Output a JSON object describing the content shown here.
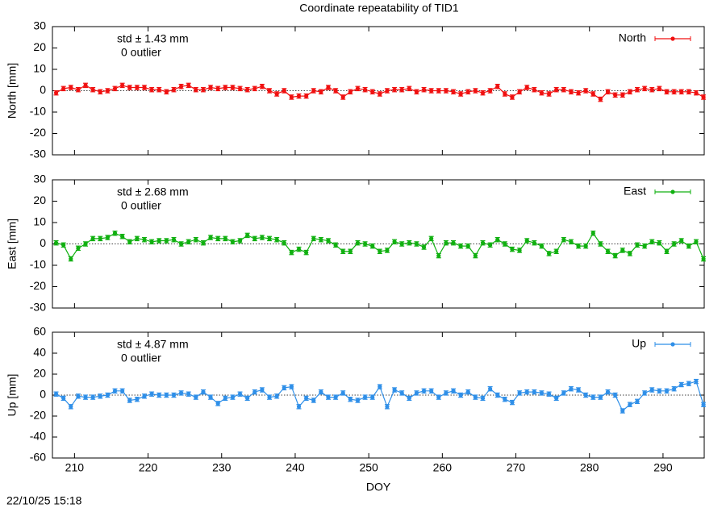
{
  "title": "Coordinate repeatability of TID1",
  "timestamp": "22/10/25 15:18",
  "chart_data": [
    {
      "type": "line",
      "ylabel": "North [mm]",
      "annotations": [
        "std ± 1.43 mm",
        "0 outlier"
      ],
      "x": [
        207.5,
        208.5,
        209.5,
        210.5,
        211.5,
        212.5,
        213.5,
        214.5,
        215.5,
        216.5,
        217.5,
        218.5,
        219.5,
        220.5,
        221.5,
        222.5,
        223.5,
        224.5,
        225.5,
        226.5,
        227.5,
        228.5,
        229.5,
        230.5,
        231.5,
        232.5,
        233.5,
        234.5,
        235.5,
        236.5,
        237.5,
        238.5,
        239.5,
        240.5,
        241.5,
        242.5,
        243.5,
        244.5,
        245.5,
        246.5,
        247.5,
        248.5,
        249.5,
        250.5,
        251.5,
        252.5,
        253.5,
        254.5,
        255.5,
        256.5,
        257.5,
        258.5,
        259.5,
        260.5,
        261.5,
        262.5,
        263.5,
        264.5,
        265.5,
        266.5,
        267.5,
        268.5,
        269.5,
        270.5,
        271.5,
        272.5,
        273.5,
        274.5,
        275.5,
        276.5,
        277.5,
        278.5,
        279.5,
        280.5,
        281.5,
        282.5,
        283.5,
        284.5,
        285.5,
        286.5,
        287.5,
        288.5,
        289.5,
        290.5,
        291.5,
        292.5,
        293.5,
        294.5,
        295.5
      ],
      "series": [
        {
          "name": "North",
          "color": "#f01010",
          "error": 1,
          "values": [
            -1,
            1,
            1.5,
            0.5,
            2.5,
            0.5,
            -0.5,
            0,
            1,
            2.5,
            1.5,
            1.5,
            1.5,
            0.5,
            0.5,
            -0.5,
            0.5,
            2,
            2.5,
            0.5,
            0.5,
            1.5,
            1,
            1.5,
            1.5,
            1,
            0.5,
            1,
            2,
            0,
            -1.5,
            0,
            -3,
            -2.5,
            -2.5,
            0,
            -0.5,
            1.5,
            0,
            -3,
            -0.5,
            1,
            0.5,
            -0.5,
            -1.5,
            0,
            0.5,
            0.5,
            1,
            -0.5,
            0.5,
            0,
            0,
            0,
            -0.5,
            -1.5,
            -0.5,
            0,
            -1,
            0,
            2,
            -1.5,
            -3,
            -0.5,
            1.5,
            0.5,
            -1,
            -1.5,
            0.5,
            0.5,
            -0.5,
            -1,
            0,
            -1.5,
            -4,
            -0.5,
            -2,
            -2,
            -0.5,
            0.5,
            1,
            0.5,
            1,
            -0.5,
            -0.5,
            -0.5,
            -0.5,
            -1,
            -3
          ]
        }
      ],
      "xlim": [
        207,
        295.6
      ],
      "xticks": [
        210,
        220,
        230,
        240,
        250,
        260,
        270,
        280,
        290
      ],
      "ylim": [
        -30,
        30
      ],
      "yticks": [
        -30,
        -20,
        -10,
        0,
        10,
        20,
        30
      ],
      "hline": 0,
      "legend": "upper right"
    },
    {
      "type": "line",
      "ylabel": "East [mm]",
      "annotations": [
        "std ± 2.68 mm",
        "0 outlier"
      ],
      "x": [
        207.5,
        208.5,
        209.5,
        210.5,
        211.5,
        212.5,
        213.5,
        214.5,
        215.5,
        216.5,
        217.5,
        218.5,
        219.5,
        220.5,
        221.5,
        222.5,
        223.5,
        224.5,
        225.5,
        226.5,
        227.5,
        228.5,
        229.5,
        230.5,
        231.5,
        232.5,
        233.5,
        234.5,
        235.5,
        236.5,
        237.5,
        238.5,
        239.5,
        240.5,
        241.5,
        242.5,
        243.5,
        244.5,
        245.5,
        246.5,
        247.5,
        248.5,
        249.5,
        250.5,
        251.5,
        252.5,
        253.5,
        254.5,
        255.5,
        256.5,
        257.5,
        258.5,
        259.5,
        260.5,
        261.5,
        262.5,
        263.5,
        264.5,
        265.5,
        266.5,
        267.5,
        268.5,
        269.5,
        270.5,
        271.5,
        272.5,
        273.5,
        274.5,
        275.5,
        276.5,
        277.5,
        278.5,
        279.5,
        280.5,
        281.5,
        282.5,
        283.5,
        284.5,
        285.5,
        286.5,
        287.5,
        288.5,
        289.5,
        290.5,
        291.5,
        292.5,
        293.5,
        294.5,
        295.5
      ],
      "series": [
        {
          "name": "East",
          "color": "#10b010",
          "error": 1,
          "values": [
            0.5,
            -0.5,
            -7,
            -2,
            0,
            2.5,
            2.5,
            3,
            5,
            3.5,
            1,
            2.5,
            2,
            1,
            1.5,
            1.5,
            2,
            0,
            1,
            2,
            0.5,
            3,
            2.5,
            2.5,
            1,
            1.5,
            4,
            2.5,
            3,
            2.5,
            2,
            0.5,
            -4,
            -2.5,
            -4,
            2.5,
            2,
            1.5,
            -0.5,
            -3.5,
            -3.5,
            0.5,
            0,
            -1,
            -3.5,
            -3,
            1,
            0,
            0.5,
            0,
            -1.5,
            2.5,
            -5.5,
            0.5,
            0.5,
            -1,
            -1,
            -5.5,
            0.5,
            -0.5,
            2,
            0,
            -2.5,
            -3,
            1.5,
            0.5,
            -1,
            -4.5,
            -3.5,
            2,
            1,
            -1,
            -1,
            5,
            0,
            -3.5,
            -5.5,
            -3,
            -4.5,
            -0.5,
            -1,
            1,
            0.5,
            -3.5,
            0,
            1.5,
            -1,
            1,
            -7
          ]
        }
      ],
      "xlim": [
        207,
        295.6
      ],
      "xticks": [
        210,
        220,
        230,
        240,
        250,
        260,
        270,
        280,
        290
      ],
      "ylim": [
        -30,
        30
      ],
      "yticks": [
        -30,
        -20,
        -10,
        0,
        10,
        20,
        30
      ],
      "hline": 0,
      "legend": "upper right"
    },
    {
      "type": "line",
      "ylabel": "Up [mm]",
      "xlabel": "DOY",
      "annotations": [
        "std ± 4.87 mm",
        "0 outlier"
      ],
      "x": [
        207.5,
        208.5,
        209.5,
        210.5,
        211.5,
        212.5,
        213.5,
        214.5,
        215.5,
        216.5,
        217.5,
        218.5,
        219.5,
        220.5,
        221.5,
        222.5,
        223.5,
        224.5,
        225.5,
        226.5,
        227.5,
        228.5,
        229.5,
        230.5,
        231.5,
        232.5,
        233.5,
        234.5,
        235.5,
        236.5,
        237.5,
        238.5,
        239.5,
        240.5,
        241.5,
        242.5,
        243.5,
        244.5,
        245.5,
        246.5,
        247.5,
        248.5,
        249.5,
        250.5,
        251.5,
        252.5,
        253.5,
        254.5,
        255.5,
        256.5,
        257.5,
        258.5,
        259.5,
        260.5,
        261.5,
        262.5,
        263.5,
        264.5,
        265.5,
        266.5,
        267.5,
        268.5,
        269.5,
        270.5,
        271.5,
        272.5,
        273.5,
        274.5,
        275.5,
        276.5,
        277.5,
        278.5,
        279.5,
        280.5,
        281.5,
        282.5,
        283.5,
        284.5,
        285.5,
        286.5,
        287.5,
        288.5,
        289.5,
        290.5,
        291.5,
        292.5,
        293.5,
        294.5,
        295.5
      ],
      "series": [
        {
          "name": "Up",
          "color": "#2f8fe8",
          "error": 2,
          "values": [
            1,
            -3,
            -11,
            -1,
            -2,
            -2,
            -1,
            0,
            4,
            4,
            -5,
            -4,
            -1,
            1,
            0,
            0,
            0,
            2,
            1,
            -2,
            3,
            -2,
            -8,
            -3,
            -2,
            1,
            -3,
            3,
            5,
            -2,
            -1,
            7,
            8,
            -11,
            -3,
            -5,
            3,
            -2,
            -2,
            2,
            -4,
            -5,
            -2,
            -2,
            8,
            -11,
            5,
            2,
            -3,
            2,
            4,
            4,
            -2,
            2,
            4,
            0,
            3,
            -2,
            -3,
            6,
            0,
            -4,
            -7,
            2,
            3,
            3,
            2,
            1,
            -3,
            2,
            6,
            5,
            0,
            -2,
            -2,
            3,
            0,
            -15,
            -9,
            -6,
            2,
            5,
            4,
            4,
            6,
            10,
            11,
            13,
            -9
          ]
        }
      ],
      "xlim": [
        207,
        295.6
      ],
      "xticks": [
        210,
        220,
        230,
        240,
        250,
        260,
        270,
        280,
        290
      ],
      "ylim": [
        -60,
        60
      ],
      "yticks": [
        -60,
        -40,
        -20,
        0,
        20,
        40,
        60
      ],
      "hline": 0,
      "legend": "upper right"
    }
  ]
}
